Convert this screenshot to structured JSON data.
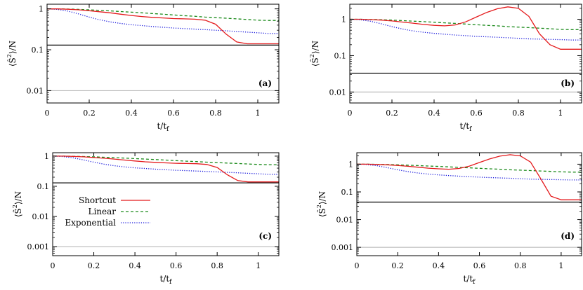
{
  "figure": {
    "x_axis_label": "t/t",
    "x_axis_label_sub": "f",
    "y_axis_label_pre": "⟨Ŝ",
    "y_axis_label_sup": "2",
    "y_axis_label_post": "⟩/N"
  },
  "legend": {
    "entries": [
      {
        "label": "Shortcut",
        "color": "#e41a1c",
        "dash": "solid"
      },
      {
        "label": "Linear",
        "color": "#1a8a1a",
        "dash": "dashed"
      },
      {
        "label": "Exponential",
        "color": "#1a1adc",
        "dash": "dotted"
      }
    ]
  },
  "chart_data": [
    {
      "type": "line",
      "panel": "(a)",
      "xlabel": "t/tf",
      "ylabel": "⟨S²⟩/N",
      "yscale": "log",
      "xlim": [
        0,
        1.1
      ],
      "ylim": [
        0.005,
        1.3
      ],
      "xticks": [
        0,
        0.2,
        0.4,
        0.6,
        0.8,
        1
      ],
      "xtick_labels": [
        "0",
        "0.2",
        "0.4",
        "0.6",
        "0.8",
        "1"
      ],
      "yticks": [
        0.01,
        0.1,
        1
      ],
      "ytick_labels": [
        "0.01",
        "0.1",
        "1"
      ],
      "x": [
        0,
        0.05,
        0.1,
        0.15,
        0.2,
        0.25,
        0.3,
        0.35,
        0.4,
        0.45,
        0.5,
        0.55,
        0.6,
        0.65,
        0.7,
        0.75,
        0.8,
        0.85,
        0.9,
        0.95,
        1.0,
        1.05,
        1.1
      ],
      "series": [
        {
          "name": "Shortcut",
          "values": [
            1.0,
            1.0,
            0.98,
            0.95,
            0.9,
            0.85,
            0.8,
            0.74,
            0.69,
            0.65,
            0.62,
            0.6,
            0.58,
            0.57,
            0.56,
            0.53,
            0.42,
            0.24,
            0.155,
            0.14,
            0.14,
            0.14,
            0.14
          ]
        },
        {
          "name": "Linear",
          "values": [
            1.0,
            1.0,
            0.99,
            0.97,
            0.95,
            0.92,
            0.89,
            0.86,
            0.83,
            0.8,
            0.77,
            0.74,
            0.71,
            0.68,
            0.66,
            0.63,
            0.61,
            0.59,
            0.57,
            0.55,
            0.53,
            0.52,
            0.52
          ]
        },
        {
          "name": "Exponential",
          "values": [
            1.0,
            0.97,
            0.88,
            0.75,
            0.63,
            0.54,
            0.48,
            0.44,
            0.41,
            0.39,
            0.37,
            0.355,
            0.34,
            0.33,
            0.32,
            0.31,
            0.3,
            0.29,
            0.28,
            0.27,
            0.26,
            0.25,
            0.25
          ]
        }
      ],
      "hlines": [
        {
          "y": 0.13,
          "color": "#000000"
        },
        {
          "y": 0.01,
          "color": "#bbbbbb"
        }
      ]
    },
    {
      "type": "line",
      "panel": "(b)",
      "xlabel": "t/tf",
      "ylabel": "⟨S²⟩/N",
      "yscale": "log",
      "xlim": [
        0,
        1.1
      ],
      "ylim": [
        0.005,
        2.6
      ],
      "xticks": [
        0,
        0.2,
        0.4,
        0.6,
        0.8,
        1
      ],
      "xtick_labels": [
        "0",
        "0.2",
        "0.4",
        "0.6",
        "0.8",
        "1"
      ],
      "yticks": [
        0.01,
        0.1,
        1
      ],
      "ytick_labels": [
        "0.01",
        "0.1",
        "1"
      ],
      "x": [
        0,
        0.05,
        0.1,
        0.15,
        0.2,
        0.25,
        0.3,
        0.35,
        0.4,
        0.45,
        0.5,
        0.55,
        0.6,
        0.65,
        0.7,
        0.75,
        0.8,
        0.85,
        0.9,
        0.95,
        1.0,
        1.05,
        1.1
      ],
      "series": [
        {
          "name": "Shortcut",
          "values": [
            1.0,
            1.0,
            0.98,
            0.95,
            0.9,
            0.84,
            0.78,
            0.72,
            0.68,
            0.66,
            0.7,
            0.85,
            1.15,
            1.55,
            1.95,
            2.2,
            2.0,
            1.2,
            0.4,
            0.2,
            0.15,
            0.15,
            0.15
          ]
        },
        {
          "name": "Linear",
          "values": [
            1.0,
            1.0,
            0.99,
            0.97,
            0.95,
            0.92,
            0.89,
            0.86,
            0.83,
            0.8,
            0.77,
            0.74,
            0.71,
            0.68,
            0.66,
            0.63,
            0.61,
            0.59,
            0.57,
            0.55,
            0.53,
            0.52,
            0.52
          ]
        },
        {
          "name": "Exponential",
          "values": [
            1.0,
            0.97,
            0.88,
            0.75,
            0.63,
            0.54,
            0.48,
            0.44,
            0.41,
            0.39,
            0.37,
            0.355,
            0.34,
            0.33,
            0.32,
            0.31,
            0.3,
            0.29,
            0.285,
            0.28,
            0.275,
            0.27,
            0.27
          ]
        }
      ],
      "hlines": [
        {
          "y": 0.033,
          "color": "#000000"
        },
        {
          "y": 0.01,
          "color": "#bbbbbb"
        }
      ]
    },
    {
      "type": "line",
      "panel": "(c)",
      "xlabel": "t/tf",
      "ylabel": "⟨S²⟩/N",
      "yscale": "log",
      "xlim": [
        0,
        1.1
      ],
      "ylim": [
        0.0005,
        1.3
      ],
      "xticks": [
        0,
        0.2,
        0.4,
        0.6,
        0.8,
        1
      ],
      "xtick_labels": [
        "0",
        "0.2",
        "0.4",
        "0.6",
        "0.8",
        "1"
      ],
      "yticks": [
        0.001,
        0.01,
        0.1,
        1
      ],
      "ytick_labels": [
        "0.001",
        "0.01",
        "0.1",
        "1"
      ],
      "x": [
        0,
        0.05,
        0.1,
        0.15,
        0.2,
        0.25,
        0.3,
        0.35,
        0.4,
        0.45,
        0.5,
        0.55,
        0.6,
        0.65,
        0.7,
        0.75,
        0.8,
        0.85,
        0.9,
        0.95,
        1.0,
        1.05,
        1.1
      ],
      "series": [
        {
          "name": "Shortcut",
          "values": [
            1.0,
            1.0,
            0.98,
            0.95,
            0.9,
            0.85,
            0.8,
            0.74,
            0.69,
            0.65,
            0.62,
            0.6,
            0.58,
            0.57,
            0.56,
            0.53,
            0.42,
            0.24,
            0.155,
            0.14,
            0.14,
            0.14,
            0.14
          ]
        },
        {
          "name": "Linear",
          "values": [
            1.0,
            1.0,
            0.99,
            0.97,
            0.95,
            0.92,
            0.89,
            0.86,
            0.83,
            0.8,
            0.77,
            0.74,
            0.71,
            0.68,
            0.66,
            0.63,
            0.61,
            0.59,
            0.57,
            0.55,
            0.53,
            0.52,
            0.52
          ]
        },
        {
          "name": "Exponential",
          "values": [
            1.0,
            0.97,
            0.88,
            0.75,
            0.63,
            0.54,
            0.48,
            0.44,
            0.41,
            0.39,
            0.37,
            0.355,
            0.34,
            0.33,
            0.32,
            0.31,
            0.3,
            0.29,
            0.28,
            0.27,
            0.26,
            0.25,
            0.25
          ]
        }
      ],
      "hlines": [
        {
          "y": 0.13,
          "color": "#000000"
        },
        {
          "y": 0.001,
          "color": "#bbbbbb"
        }
      ]
    },
    {
      "type": "line",
      "panel": "(d)",
      "xlabel": "t/tf",
      "ylabel": "⟨S²⟩/N",
      "yscale": "log",
      "xlim": [
        0,
        1.1
      ],
      "ylim": [
        0.0005,
        2.6
      ],
      "xticks": [
        0,
        0.2,
        0.4,
        0.6,
        0.8,
        1
      ],
      "xtick_labels": [
        "0",
        "0.2",
        "0.4",
        "0.6",
        "0.8",
        "1"
      ],
      "yticks": [
        0.001,
        0.01,
        0.1,
        1
      ],
      "ytick_labels": [
        "0.001",
        "0.01",
        "0.1",
        "1"
      ],
      "x": [
        0,
        0.05,
        0.1,
        0.15,
        0.2,
        0.25,
        0.3,
        0.35,
        0.4,
        0.45,
        0.5,
        0.55,
        0.6,
        0.65,
        0.7,
        0.75,
        0.8,
        0.85,
        0.9,
        0.95,
        1.0,
        1.05,
        1.1
      ],
      "series": [
        {
          "name": "Shortcut",
          "values": [
            1.0,
            1.0,
            0.98,
            0.95,
            0.9,
            0.84,
            0.78,
            0.72,
            0.68,
            0.66,
            0.7,
            0.85,
            1.15,
            1.55,
            1.95,
            2.2,
            2.0,
            1.2,
            0.3,
            0.07,
            0.052,
            0.052,
            0.052
          ]
        },
        {
          "name": "Linear",
          "values": [
            1.0,
            1.0,
            0.99,
            0.97,
            0.95,
            0.92,
            0.89,
            0.86,
            0.83,
            0.8,
            0.77,
            0.74,
            0.71,
            0.68,
            0.66,
            0.63,
            0.61,
            0.59,
            0.57,
            0.55,
            0.53,
            0.52,
            0.52
          ]
        },
        {
          "name": "Exponential",
          "values": [
            1.0,
            0.97,
            0.88,
            0.75,
            0.63,
            0.54,
            0.48,
            0.44,
            0.41,
            0.39,
            0.37,
            0.355,
            0.34,
            0.33,
            0.32,
            0.31,
            0.3,
            0.29,
            0.285,
            0.28,
            0.275,
            0.27,
            0.27
          ]
        }
      ],
      "hlines": [
        {
          "y": 0.043,
          "color": "#000000"
        },
        {
          "y": 0.001,
          "color": "#bbbbbb"
        }
      ]
    }
  ]
}
